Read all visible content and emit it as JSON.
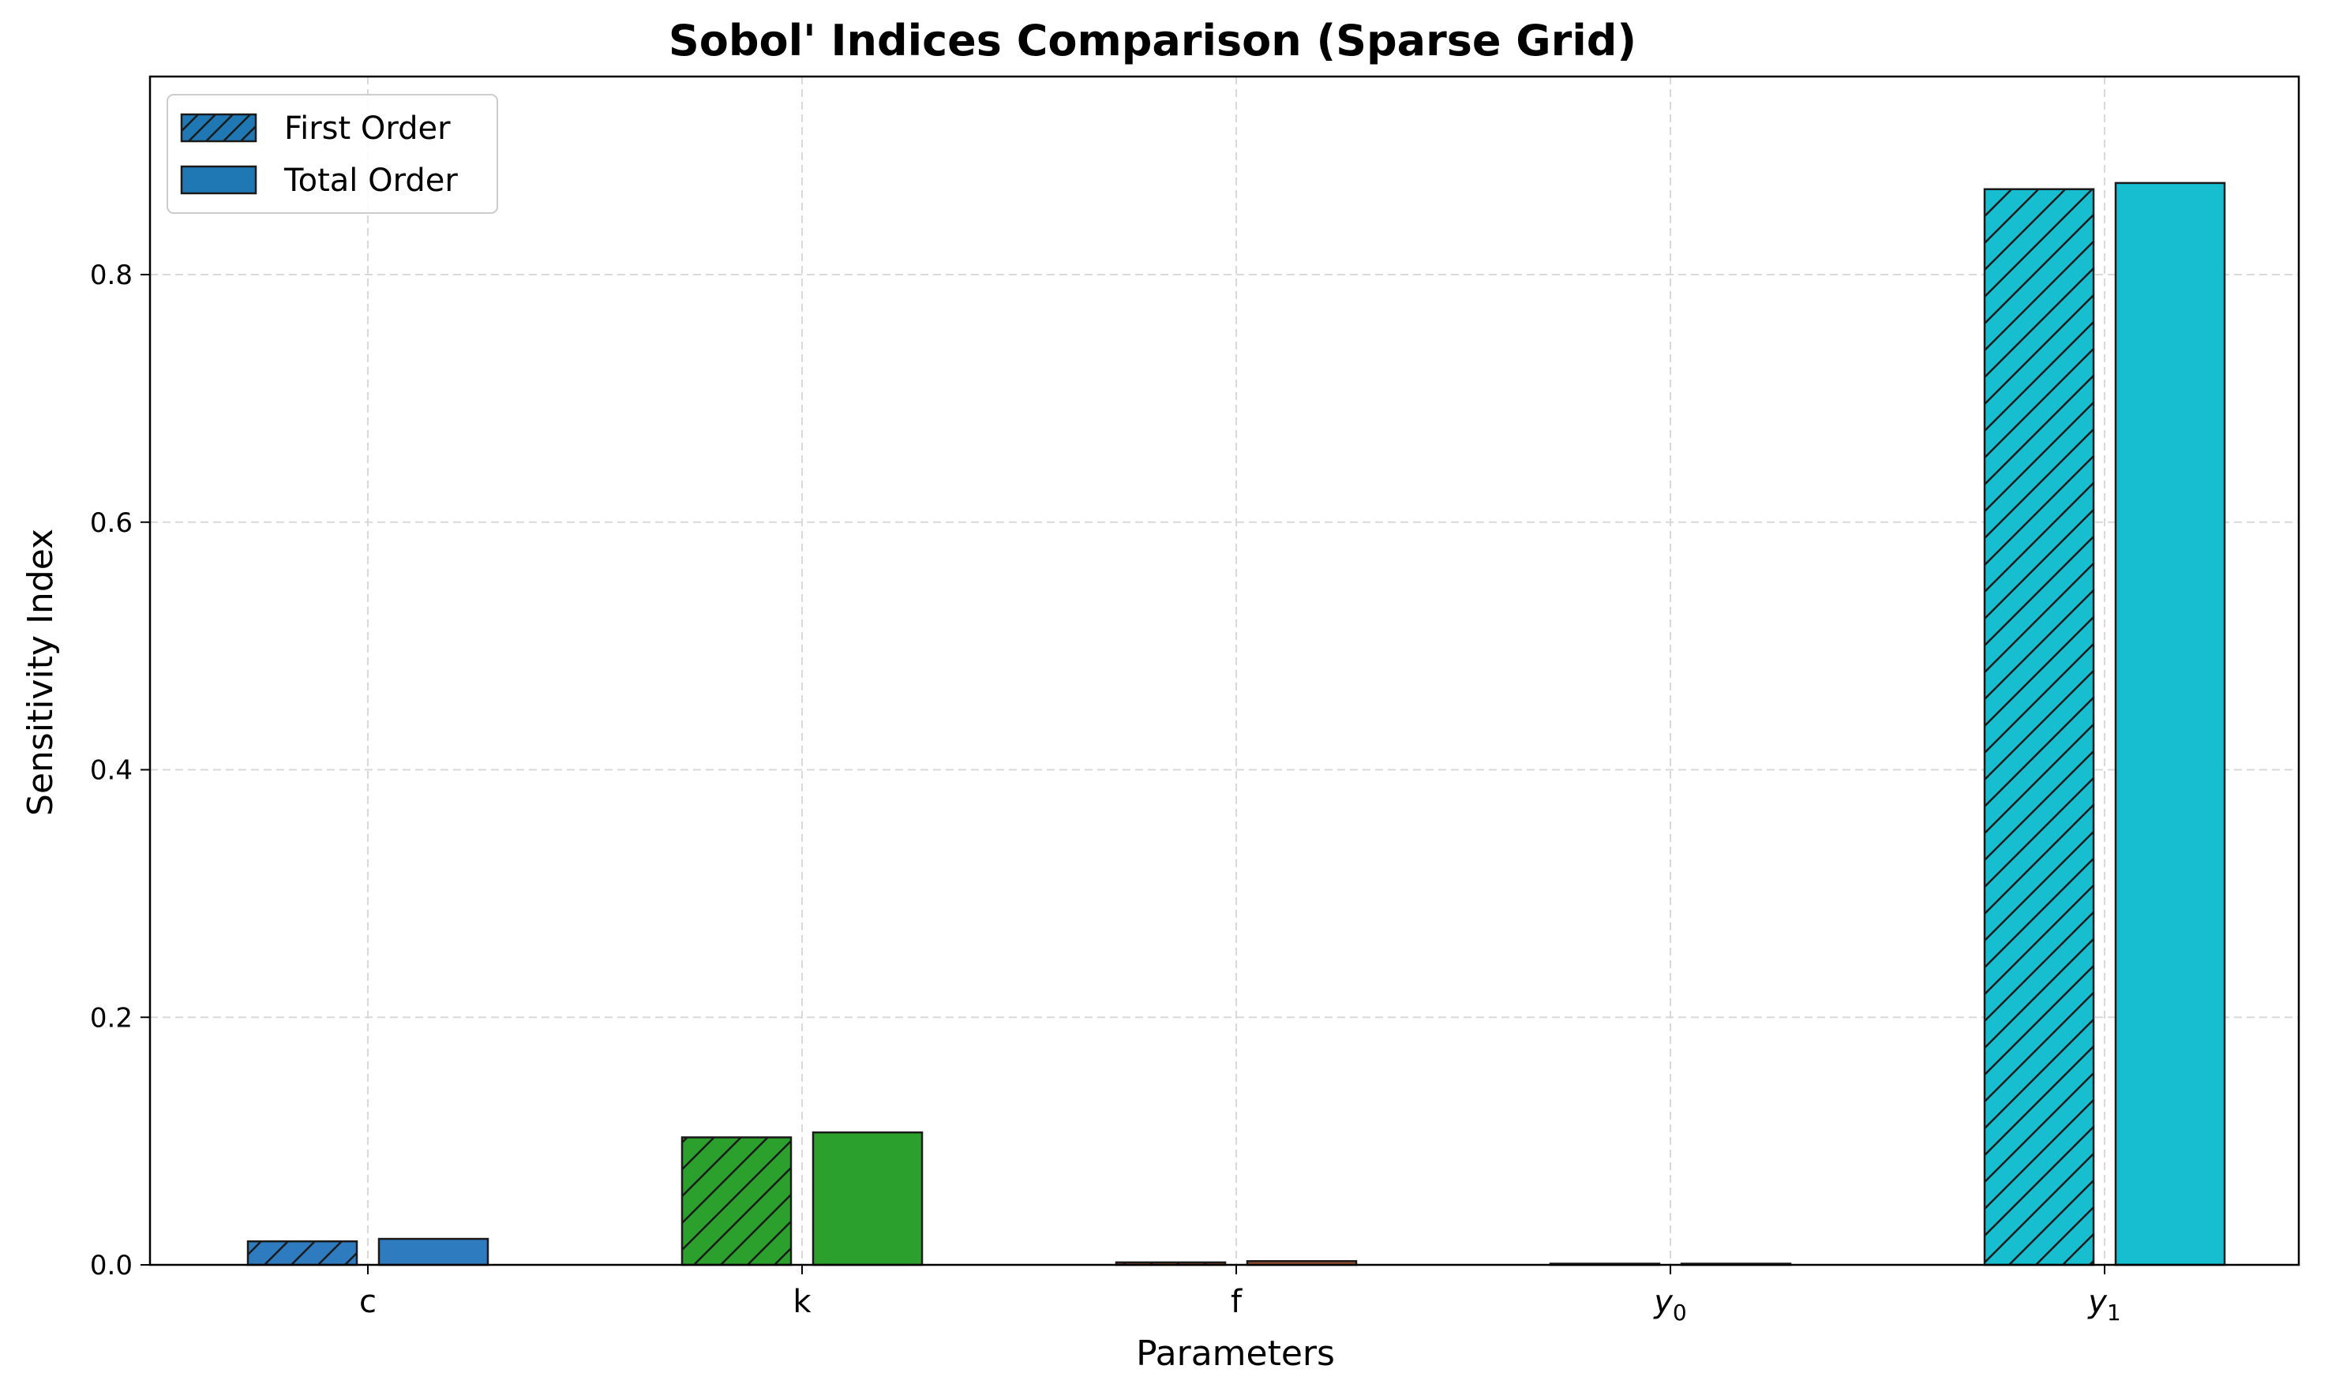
{
  "chart_data": {
    "type": "bar",
    "title": "Sobol' Indices Comparison (Sparse Grid)",
    "xlabel": "Parameters",
    "ylabel": "Sensitivity Index",
    "categories": [
      "c",
      "k",
      "f",
      "y0",
      "y1"
    ],
    "category_labels": [
      {
        "base": "c",
        "sub": ""
      },
      {
        "base": "k",
        "sub": ""
      },
      {
        "base": "f",
        "sub": ""
      },
      {
        "base": "y",
        "sub": "0",
        "italic": true
      },
      {
        "base": "y",
        "sub": "1",
        "italic": true
      }
    ],
    "category_colors": [
      "#2f7bbf",
      "#2ca02c",
      "#a0522d",
      "#7f7f7f",
      "#17becf"
    ],
    "series": [
      {
        "name": "First Order",
        "hatched": true,
        "values": [
          0.019,
          0.103,
          0.002,
          0.0,
          0.869
        ]
      },
      {
        "name": "Total Order",
        "hatched": false,
        "values": [
          0.021,
          0.107,
          0.003,
          0.0,
          0.874
        ]
      }
    ],
    "ylim": [
      0,
      0.96
    ],
    "yticks": [
      0.0,
      0.2,
      0.4,
      0.6,
      0.8
    ],
    "ytick_labels": [
      "0.0",
      "0.2",
      "0.4",
      "0.6",
      "0.8"
    ],
    "legend": {
      "placement": "top-left",
      "entries": [
        "First Order",
        "Total Order"
      ],
      "swatch_color": "#1f77b4"
    },
    "grid": true
  }
}
